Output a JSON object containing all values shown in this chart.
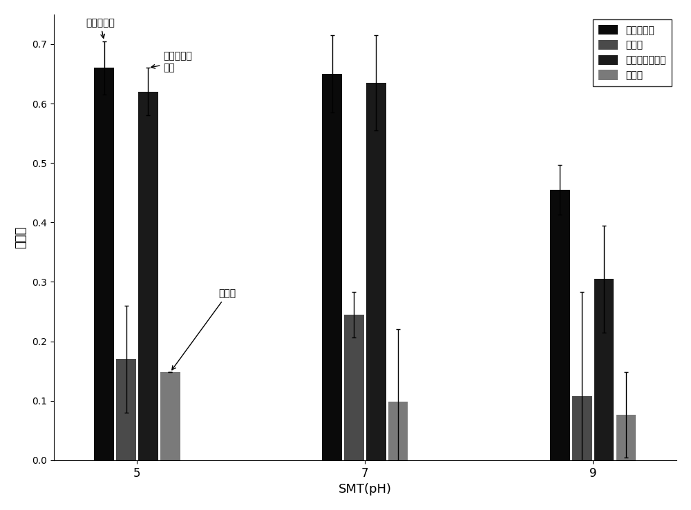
{
  "categories": [
    "5",
    "7",
    "9"
  ],
  "series_order": [
    "固定化菌剂",
    "游离菌",
    "固定化无菌小球",
    "空白组"
  ],
  "series": {
    "固定化菌剂": {
      "values": [
        0.66,
        0.65,
        0.455
      ],
      "errors": [
        0.045,
        0.065,
        0.042
      ],
      "color": "#0a0a0a"
    },
    "游离菌": {
      "values": [
        0.17,
        0.245,
        0.108
      ],
      "errors": [
        0.09,
        0.038,
        0.175
      ],
      "color": "#4a4a4a"
    },
    "固定化无菌小球": {
      "values": [
        0.62,
        0.635,
        0.305
      ],
      "errors": [
        0.04,
        0.08,
        0.09
      ],
      "color": "#1a1a1a"
    },
    "空白组": {
      "values": [
        0.148,
        0.098,
        0.077
      ],
      "errors": [
        0.0,
        0.122,
        0.072
      ],
      "color": "#7a7a7a"
    }
  },
  "xlabel": "SMT(pH)",
  "ylabel": "去除率",
  "ylim": [
    0.0,
    0.75
  ],
  "yticks": [
    0.0,
    0.1,
    0.2,
    0.3,
    0.4,
    0.5,
    0.6,
    0.7
  ],
  "bar_width": 0.13,
  "group_centers": [
    1.0,
    2.5,
    4.0
  ],
  "background_color": "#ffffff"
}
